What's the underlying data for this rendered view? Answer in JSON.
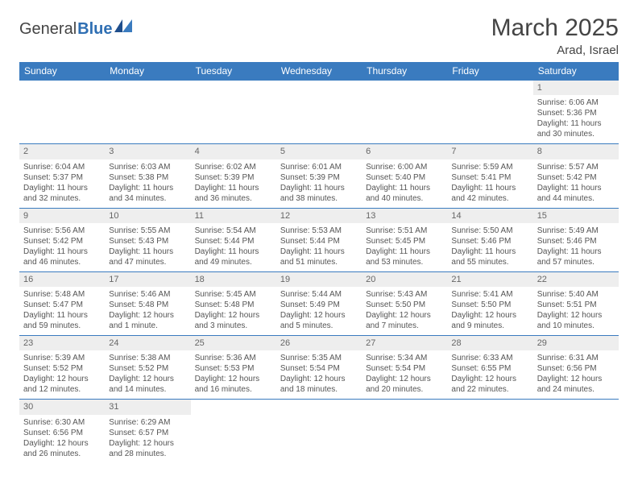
{
  "logo": {
    "general": "General",
    "blue": "Blue"
  },
  "title": "March 2025",
  "subtitle": "Arad, Israel",
  "colors": {
    "header_bg": "#3a7bbf",
    "header_fg": "#ffffff",
    "border": "#3a7bbf",
    "daynum_bg": "#eeeeee",
    "text": "#555555",
    "title": "#444444"
  },
  "day_headers": [
    "Sunday",
    "Monday",
    "Tuesday",
    "Wednesday",
    "Thursday",
    "Friday",
    "Saturday"
  ],
  "weeks": [
    [
      null,
      null,
      null,
      null,
      null,
      null,
      {
        "n": "1",
        "sr": "Sunrise: 6:06 AM",
        "ss": "Sunset: 5:36 PM",
        "d1": "Daylight: 11 hours",
        "d2": "and 30 minutes."
      }
    ],
    [
      {
        "n": "2",
        "sr": "Sunrise: 6:04 AM",
        "ss": "Sunset: 5:37 PM",
        "d1": "Daylight: 11 hours",
        "d2": "and 32 minutes."
      },
      {
        "n": "3",
        "sr": "Sunrise: 6:03 AM",
        "ss": "Sunset: 5:38 PM",
        "d1": "Daylight: 11 hours",
        "d2": "and 34 minutes."
      },
      {
        "n": "4",
        "sr": "Sunrise: 6:02 AM",
        "ss": "Sunset: 5:39 PM",
        "d1": "Daylight: 11 hours",
        "d2": "and 36 minutes."
      },
      {
        "n": "5",
        "sr": "Sunrise: 6:01 AM",
        "ss": "Sunset: 5:39 PM",
        "d1": "Daylight: 11 hours",
        "d2": "and 38 minutes."
      },
      {
        "n": "6",
        "sr": "Sunrise: 6:00 AM",
        "ss": "Sunset: 5:40 PM",
        "d1": "Daylight: 11 hours",
        "d2": "and 40 minutes."
      },
      {
        "n": "7",
        "sr": "Sunrise: 5:59 AM",
        "ss": "Sunset: 5:41 PM",
        "d1": "Daylight: 11 hours",
        "d2": "and 42 minutes."
      },
      {
        "n": "8",
        "sr": "Sunrise: 5:57 AM",
        "ss": "Sunset: 5:42 PM",
        "d1": "Daylight: 11 hours",
        "d2": "and 44 minutes."
      }
    ],
    [
      {
        "n": "9",
        "sr": "Sunrise: 5:56 AM",
        "ss": "Sunset: 5:42 PM",
        "d1": "Daylight: 11 hours",
        "d2": "and 46 minutes."
      },
      {
        "n": "10",
        "sr": "Sunrise: 5:55 AM",
        "ss": "Sunset: 5:43 PM",
        "d1": "Daylight: 11 hours",
        "d2": "and 47 minutes."
      },
      {
        "n": "11",
        "sr": "Sunrise: 5:54 AM",
        "ss": "Sunset: 5:44 PM",
        "d1": "Daylight: 11 hours",
        "d2": "and 49 minutes."
      },
      {
        "n": "12",
        "sr": "Sunrise: 5:53 AM",
        "ss": "Sunset: 5:44 PM",
        "d1": "Daylight: 11 hours",
        "d2": "and 51 minutes."
      },
      {
        "n": "13",
        "sr": "Sunrise: 5:51 AM",
        "ss": "Sunset: 5:45 PM",
        "d1": "Daylight: 11 hours",
        "d2": "and 53 minutes."
      },
      {
        "n": "14",
        "sr": "Sunrise: 5:50 AM",
        "ss": "Sunset: 5:46 PM",
        "d1": "Daylight: 11 hours",
        "d2": "and 55 minutes."
      },
      {
        "n": "15",
        "sr": "Sunrise: 5:49 AM",
        "ss": "Sunset: 5:46 PM",
        "d1": "Daylight: 11 hours",
        "d2": "and 57 minutes."
      }
    ],
    [
      {
        "n": "16",
        "sr": "Sunrise: 5:48 AM",
        "ss": "Sunset: 5:47 PM",
        "d1": "Daylight: 11 hours",
        "d2": "and 59 minutes."
      },
      {
        "n": "17",
        "sr": "Sunrise: 5:46 AM",
        "ss": "Sunset: 5:48 PM",
        "d1": "Daylight: 12 hours",
        "d2": "and 1 minute."
      },
      {
        "n": "18",
        "sr": "Sunrise: 5:45 AM",
        "ss": "Sunset: 5:48 PM",
        "d1": "Daylight: 12 hours",
        "d2": "and 3 minutes."
      },
      {
        "n": "19",
        "sr": "Sunrise: 5:44 AM",
        "ss": "Sunset: 5:49 PM",
        "d1": "Daylight: 12 hours",
        "d2": "and 5 minutes."
      },
      {
        "n": "20",
        "sr": "Sunrise: 5:43 AM",
        "ss": "Sunset: 5:50 PM",
        "d1": "Daylight: 12 hours",
        "d2": "and 7 minutes."
      },
      {
        "n": "21",
        "sr": "Sunrise: 5:41 AM",
        "ss": "Sunset: 5:50 PM",
        "d1": "Daylight: 12 hours",
        "d2": "and 9 minutes."
      },
      {
        "n": "22",
        "sr": "Sunrise: 5:40 AM",
        "ss": "Sunset: 5:51 PM",
        "d1": "Daylight: 12 hours",
        "d2": "and 10 minutes."
      }
    ],
    [
      {
        "n": "23",
        "sr": "Sunrise: 5:39 AM",
        "ss": "Sunset: 5:52 PM",
        "d1": "Daylight: 12 hours",
        "d2": "and 12 minutes."
      },
      {
        "n": "24",
        "sr": "Sunrise: 5:38 AM",
        "ss": "Sunset: 5:52 PM",
        "d1": "Daylight: 12 hours",
        "d2": "and 14 minutes."
      },
      {
        "n": "25",
        "sr": "Sunrise: 5:36 AM",
        "ss": "Sunset: 5:53 PM",
        "d1": "Daylight: 12 hours",
        "d2": "and 16 minutes."
      },
      {
        "n": "26",
        "sr": "Sunrise: 5:35 AM",
        "ss": "Sunset: 5:54 PM",
        "d1": "Daylight: 12 hours",
        "d2": "and 18 minutes."
      },
      {
        "n": "27",
        "sr": "Sunrise: 5:34 AM",
        "ss": "Sunset: 5:54 PM",
        "d1": "Daylight: 12 hours",
        "d2": "and 20 minutes."
      },
      {
        "n": "28",
        "sr": "Sunrise: 6:33 AM",
        "ss": "Sunset: 6:55 PM",
        "d1": "Daylight: 12 hours",
        "d2": "and 22 minutes."
      },
      {
        "n": "29",
        "sr": "Sunrise: 6:31 AM",
        "ss": "Sunset: 6:56 PM",
        "d1": "Daylight: 12 hours",
        "d2": "and 24 minutes."
      }
    ],
    [
      {
        "n": "30",
        "sr": "Sunrise: 6:30 AM",
        "ss": "Sunset: 6:56 PM",
        "d1": "Daylight: 12 hours",
        "d2": "and 26 minutes."
      },
      {
        "n": "31",
        "sr": "Sunrise: 6:29 AM",
        "ss": "Sunset: 6:57 PM",
        "d1": "Daylight: 12 hours",
        "d2": "and 28 minutes."
      },
      null,
      null,
      null,
      null,
      null
    ]
  ]
}
